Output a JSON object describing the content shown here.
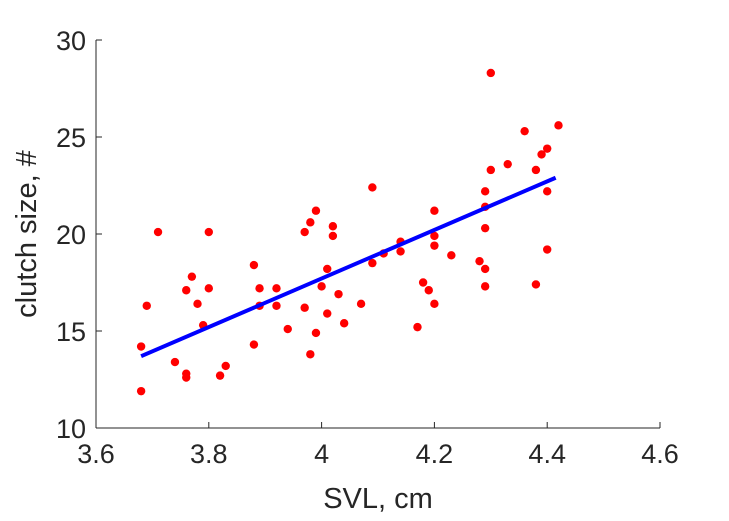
{
  "chart_data": {
    "type": "scatter",
    "title": "",
    "xlabel": "SVL, cm",
    "ylabel": "clutch size, #",
    "xlim": [
      3.6,
      4.6
    ],
    "ylim": [
      10,
      30
    ],
    "xticks": [
      3.6,
      3.8,
      4,
      4.2,
      4.4,
      4.6
    ],
    "xtick_labels": [
      "3.6",
      "3.8",
      "4",
      "4.2",
      "4.4",
      "4.6"
    ],
    "yticks": [
      10,
      15,
      20,
      25,
      30
    ],
    "ytick_labels": [
      "10",
      "15",
      "20",
      "25",
      "30"
    ],
    "grid": false,
    "legend": "none",
    "series": [
      {
        "kind": "scatter",
        "color": "#ff0000",
        "points": [
          [
            3.68,
            14.2
          ],
          [
            3.68,
            11.9
          ],
          [
            3.69,
            16.3
          ],
          [
            3.71,
            20.1
          ],
          [
            3.74,
            13.4
          ],
          [
            3.76,
            17.1
          ],
          [
            3.76,
            12.8
          ],
          [
            3.76,
            12.6
          ],
          [
            3.77,
            17.8
          ],
          [
            3.78,
            16.4
          ],
          [
            3.79,
            15.3
          ],
          [
            3.8,
            20.1
          ],
          [
            3.8,
            17.2
          ],
          [
            3.82,
            12.7
          ],
          [
            3.83,
            13.2
          ],
          [
            3.88,
            14.3
          ],
          [
            3.88,
            18.4
          ],
          [
            3.89,
            17.2
          ],
          [
            3.89,
            16.3
          ],
          [
            3.92,
            17.2
          ],
          [
            3.92,
            16.3
          ],
          [
            3.94,
            15.1
          ],
          [
            3.97,
            20.1
          ],
          [
            3.97,
            16.2
          ],
          [
            3.98,
            20.6
          ],
          [
            3.98,
            13.8
          ],
          [
            3.99,
            21.2
          ],
          [
            3.99,
            14.9
          ],
          [
            4.0,
            17.3
          ],
          [
            4.01,
            15.9
          ],
          [
            4.01,
            18.2
          ],
          [
            4.02,
            20.4
          ],
          [
            4.02,
            19.9
          ],
          [
            4.03,
            16.9
          ],
          [
            4.04,
            15.4
          ],
          [
            4.07,
            16.4
          ],
          [
            4.09,
            22.4
          ],
          [
            4.09,
            18.5
          ],
          [
            4.11,
            19.0
          ],
          [
            4.14,
            19.6
          ],
          [
            4.14,
            19.1
          ],
          [
            4.17,
            15.2
          ],
          [
            4.18,
            17.5
          ],
          [
            4.19,
            17.1
          ],
          [
            4.2,
            16.4
          ],
          [
            4.2,
            19.9
          ],
          [
            4.2,
            19.4
          ],
          [
            4.2,
            21.2
          ],
          [
            4.23,
            18.9
          ],
          [
            4.28,
            18.6
          ],
          [
            4.29,
            20.3
          ],
          [
            4.29,
            21.4
          ],
          [
            4.29,
            22.2
          ],
          [
            4.29,
            17.3
          ],
          [
            4.29,
            18.2
          ],
          [
            4.3,
            23.3
          ],
          [
            4.3,
            28.3
          ],
          [
            4.33,
            23.6
          ],
          [
            4.36,
            25.3
          ],
          [
            4.38,
            23.3
          ],
          [
            4.38,
            17.4
          ],
          [
            4.39,
            24.1
          ],
          [
            4.4,
            24.4
          ],
          [
            4.4,
            22.2
          ],
          [
            4.4,
            19.2
          ],
          [
            4.42,
            25.6
          ]
        ]
      },
      {
        "kind": "line",
        "color": "#0000ff",
        "points": [
          [
            3.68,
            13.7
          ],
          [
            4.415,
            22.9
          ]
        ]
      }
    ]
  }
}
